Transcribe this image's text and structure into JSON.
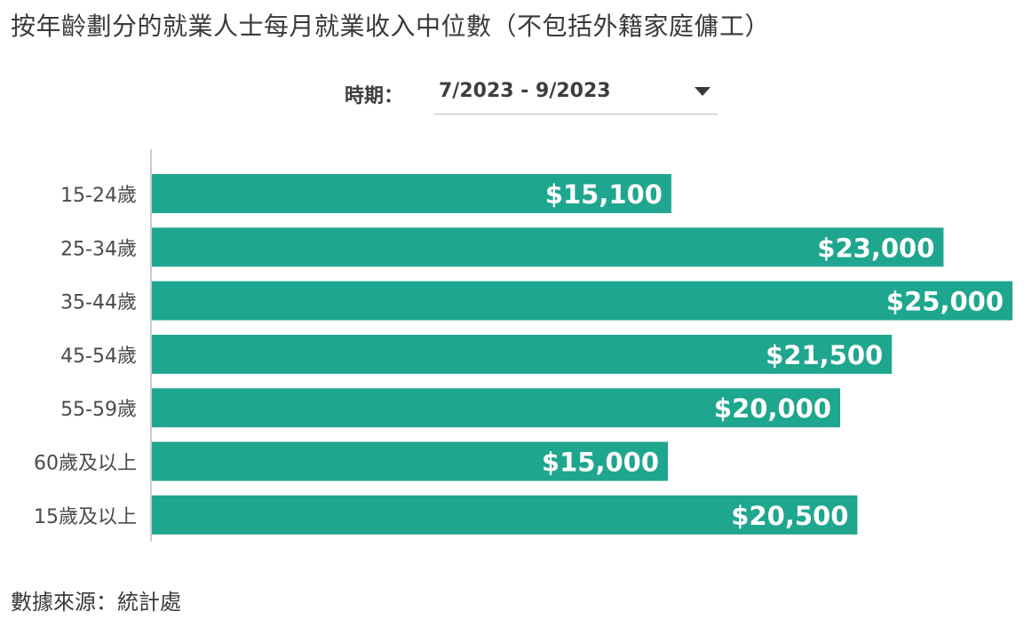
{
  "title": "按年齡劃分的就業人士每月就業收入中位數（不包括外籍家庭傭工）",
  "period": {
    "label": "時期：",
    "value": "7/2023 - 9/2023"
  },
  "source": {
    "label": "數據來源：",
    "value": "統計處"
  },
  "colors": {
    "bar": "#1fa68e",
    "bar_label": "#ffffff",
    "axis": "#cccccc",
    "tick_text": "#4a4a4a"
  },
  "chart_data": {
    "type": "bar",
    "orientation": "horizontal",
    "categories": [
      "15-24歲",
      "25-34歲",
      "35-44歲",
      "45-54歲",
      "55-59歲",
      "60歲及以上",
      "15歲及以上"
    ],
    "values": [
      15100,
      23000,
      25000,
      21500,
      20000,
      15000,
      20500
    ],
    "data_labels": [
      "$15,100",
      "$23,000",
      "$25,000",
      "$21,500",
      "$20,000",
      "$15,000",
      "$20,500"
    ],
    "xlim": [
      0,
      25000
    ],
    "grid": false,
    "legend": "none"
  }
}
